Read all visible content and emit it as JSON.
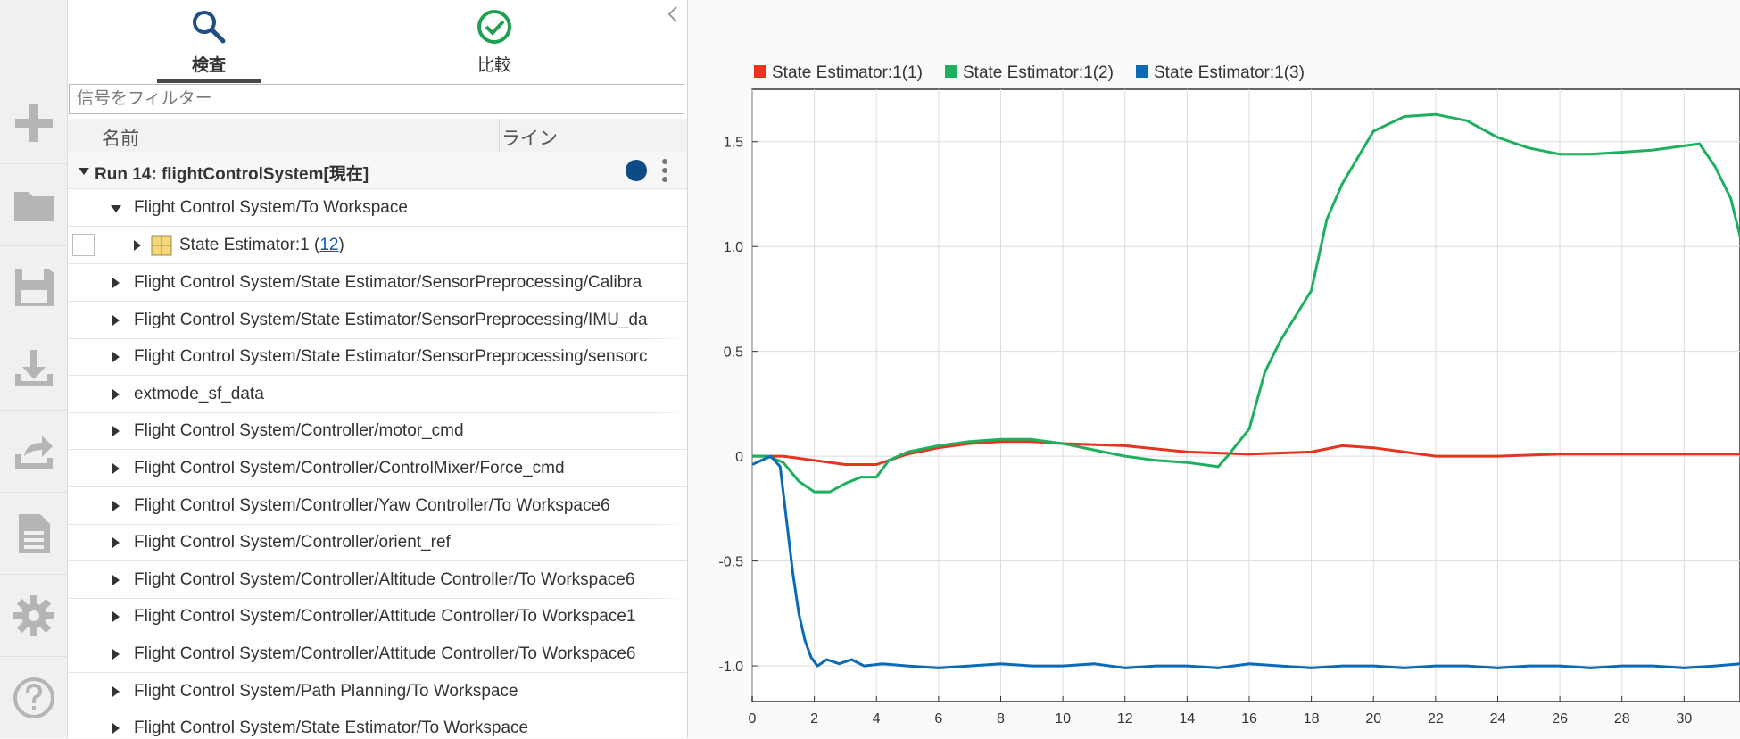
{
  "tabs": [
    {
      "label": "検査",
      "icon": "search-icon",
      "active": true
    },
    {
      "label": "比較",
      "icon": "check-circle-icon",
      "active": false
    }
  ],
  "filter": {
    "placeholder": "信号をフィルター",
    "value": ""
  },
  "columns": {
    "name": "名前",
    "line": "ライン"
  },
  "run": {
    "label": "Run 14: flightControlSystem[現在]",
    "color": "#0e4a86"
  },
  "tree": {
    "workspace_group": "Flight Control System/To Workspace",
    "state_estimator": {
      "label": "State Estimator:1",
      "count_prefix": "(",
      "count": "12",
      "count_suffix": ")"
    },
    "items": [
      "Flight Control System/State Estimator/SensorPreprocessing/Calibra",
      "Flight Control System/State Estimator/SensorPreprocessing/IMU_da",
      "Flight Control System/State Estimator/SensorPreprocessing/sensorc",
      "extmode_sf_data",
      "Flight Control System/Controller/motor_cmd",
      "Flight Control System/Controller/ControlMixer/Force_cmd",
      "Flight Control System/Controller/Yaw Controller/To Workspace6",
      "Flight Control System/Controller/orient_ref",
      "Flight Control System/Controller/Altitude Controller/To Workspace6",
      "Flight Control System/Controller/Attitude Controller/To Workspace1",
      "Flight Control System/Controller/Attitude Controller/To Workspace6",
      "Flight Control System/Path Planning/To Workspace",
      "Flight Control System/State Estimator/To Workspace"
    ]
  },
  "rail": [
    {
      "icon": "plus-icon"
    },
    {
      "icon": "folder-icon"
    },
    {
      "icon": "save-icon"
    },
    {
      "icon": "download-icon"
    },
    {
      "icon": "share-icon"
    },
    {
      "icon": "document-icon"
    },
    {
      "icon": "gear-icon"
    },
    {
      "icon": "help-icon"
    }
  ],
  "chart_data": {
    "type": "line",
    "title": "",
    "xlabel": "",
    "ylabel": "",
    "xlim": [
      0,
      31.8
    ],
    "ylim": [
      -1.17,
      1.75
    ],
    "xticks": [
      0,
      2,
      4,
      6,
      8,
      10,
      12,
      14,
      16,
      18,
      20,
      22,
      24,
      26,
      28,
      30
    ],
    "yticks": [
      1.5,
      1.0,
      0.5,
      0,
      -0.5,
      -1.0
    ],
    "ytick_labels": [
      "1.5",
      "1.0",
      "0.5",
      "0",
      "-0.5",
      "-1.0"
    ],
    "grid": true,
    "legend": "top",
    "series": [
      {
        "name": "State Estimator:1(1)",
        "color": "#e8331f",
        "x": [
          0,
          1,
          2,
          3,
          4,
          5,
          6,
          7,
          8,
          9,
          10,
          12,
          14,
          16,
          18,
          19,
          20,
          21,
          22,
          24,
          26,
          28,
          30,
          31.8
        ],
        "y": [
          0,
          0,
          -0.02,
          -0.04,
          -0.04,
          0.01,
          0.04,
          0.06,
          0.07,
          0.07,
          0.06,
          0.05,
          0.02,
          0.01,
          0.02,
          0.05,
          0.04,
          0.02,
          0,
          0,
          0.01,
          0.01,
          0.01,
          0.01
        ]
      },
      {
        "name": "State Estimator:1(2)",
        "color": "#1fb05f",
        "x": [
          0,
          0.5,
          1,
          1.5,
          2,
          2.5,
          3,
          3.5,
          4,
          4.4,
          5,
          6,
          7,
          8,
          9,
          10,
          11,
          12,
          13,
          14,
          15,
          15.3,
          16,
          16.5,
          17,
          18,
          18.5,
          19,
          20,
          21,
          22,
          23,
          24,
          25,
          26,
          27,
          28,
          29,
          30,
          30.5,
          31,
          31.5,
          31.8
        ],
        "y": [
          0,
          0,
          -0.03,
          -0.12,
          -0.17,
          -0.17,
          -0.13,
          -0.1,
          -0.1,
          -0.02,
          0.02,
          0.05,
          0.07,
          0.08,
          0.08,
          0.06,
          0.03,
          0,
          -0.02,
          -0.03,
          -0.05,
          0,
          0.13,
          0.4,
          0.55,
          0.79,
          1.13,
          1.3,
          1.55,
          1.62,
          1.63,
          1.6,
          1.52,
          1.47,
          1.44,
          1.44,
          1.45,
          1.46,
          1.48,
          1.49,
          1.38,
          1.23,
          1.05
        ]
      },
      {
        "name": "State Estimator:1(3)",
        "color": "#0b6ab5",
        "x": [
          0,
          0.3,
          0.6,
          0.9,
          1.1,
          1.3,
          1.5,
          1.7,
          1.9,
          2.1,
          2.4,
          2.8,
          3.2,
          3.6,
          4.2,
          5,
          6,
          7,
          8,
          9,
          10,
          11,
          12,
          13,
          14,
          15,
          16,
          17,
          18,
          19,
          20,
          21,
          22,
          23,
          24,
          25,
          26,
          27,
          28,
          29,
          30,
          31,
          31.8
        ],
        "y": [
          -0.04,
          -0.02,
          0,
          -0.05,
          -0.3,
          -0.55,
          -0.75,
          -0.88,
          -0.96,
          -1.0,
          -0.97,
          -0.99,
          -0.97,
          -1.0,
          -0.99,
          -1.0,
          -1.01,
          -1.0,
          -0.99,
          -1.0,
          -1.0,
          -0.99,
          -1.01,
          -1.0,
          -1.0,
          -1.01,
          -0.99,
          -1.0,
          -1.01,
          -1.0,
          -1.0,
          -1.01,
          -1.0,
          -1.0,
          -1.01,
          -1.0,
          -1.0,
          -1.01,
          -1.0,
          -1.0,
          -1.01,
          -1.0,
          -0.99
        ]
      }
    ]
  }
}
